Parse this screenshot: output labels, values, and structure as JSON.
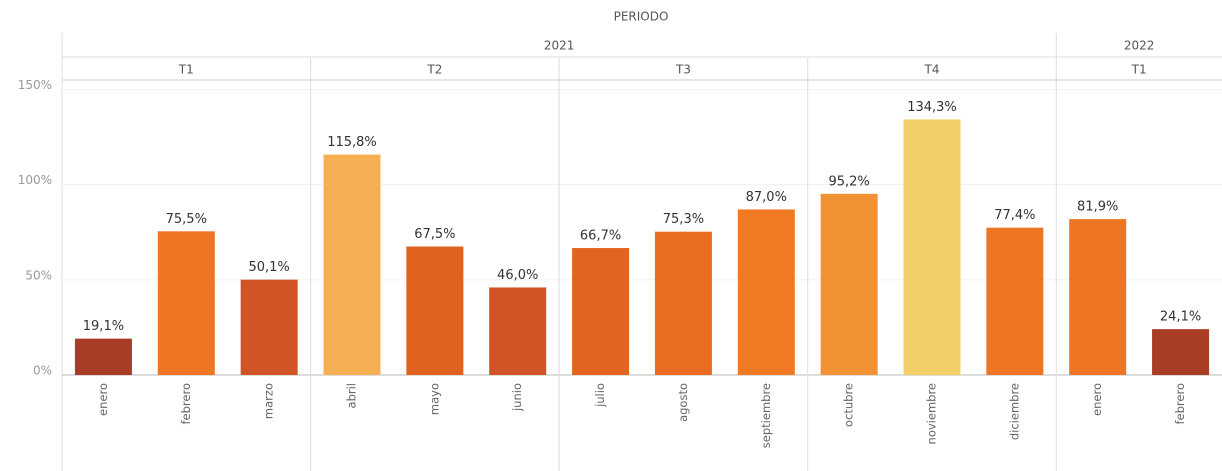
{
  "chart_data": {
    "type": "bar",
    "title": "PERIODO",
    "ylim": [
      0,
      155
    ],
    "yticks": [
      {
        "value": 0,
        "label": "0%"
      },
      {
        "value": 50,
        "label": "50%"
      },
      {
        "value": 100,
        "label": "100%"
      },
      {
        "value": 150,
        "label": "150%"
      }
    ],
    "grid": true,
    "years": [
      {
        "label": "2021",
        "quarters": [
          {
            "label": "T1",
            "months": [
              {
                "label": "enero",
                "value": 19.1,
                "value_label": "19,1%",
                "color": "#a83c25"
              },
              {
                "label": "febrero",
                "value": 75.5,
                "value_label": "75,5%",
                "color": "#ee7523"
              },
              {
                "label": "marzo",
                "value": 50.1,
                "value_label": "50,1%",
                "color": "#d05426"
              }
            ]
          },
          {
            "label": "T2",
            "months": [
              {
                "label": "abril",
                "value": 115.8,
                "value_label": "115,8%",
                "color": "#f6ae52"
              },
              {
                "label": "mayo",
                "value": 67.5,
                "value_label": "67,5%",
                "color": "#e0621f"
              },
              {
                "label": "junio",
                "value": 46.0,
                "value_label": "46,0%",
                "color": "#d05426"
              }
            ]
          },
          {
            "label": "T3",
            "months": [
              {
                "label": "julio",
                "value": 66.7,
                "value_label": "66,7%",
                "color": "#e2641f"
              },
              {
                "label": "agosto",
                "value": 75.3,
                "value_label": "75,3%",
                "color": "#ea6c21"
              },
              {
                "label": "septiembre",
                "value": 87.0,
                "value_label": "87,0%",
                "color": "#ef7a23"
              }
            ]
          },
          {
            "label": "T4",
            "months": [
              {
                "label": "octubre",
                "value": 95.2,
                "value_label": "95,2%",
                "color": "#f39135"
              },
              {
                "label": "noviembre",
                "value": 134.3,
                "value_label": "134,3%",
                "color": "#f2cf68"
              },
              {
                "label": "diciembre",
                "value": 77.4,
                "value_label": "77,4%",
                "color": "#ee7523"
              }
            ]
          }
        ]
      },
      {
        "label": "2022",
        "quarters": [
          {
            "label": "T1",
            "months": [
              {
                "label": "enero",
                "value": 81.9,
                "value_label": "81,9%",
                "color": "#ee7523"
              },
              {
                "label": "febrero",
                "value": 24.1,
                "value_label": "24,1%",
                "color": "#a83c25"
              }
            ]
          }
        ]
      }
    ]
  }
}
